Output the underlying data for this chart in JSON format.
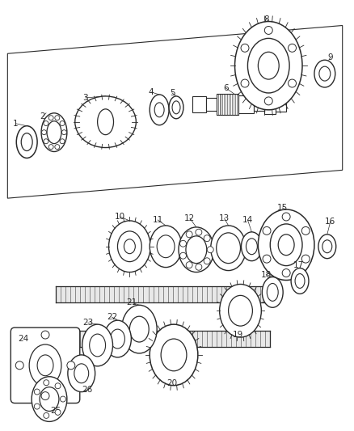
{
  "bg_color": "#ffffff",
  "lc": "#2a2a2a",
  "fig_width": 4.38,
  "fig_height": 5.33,
  "dpi": 100
}
